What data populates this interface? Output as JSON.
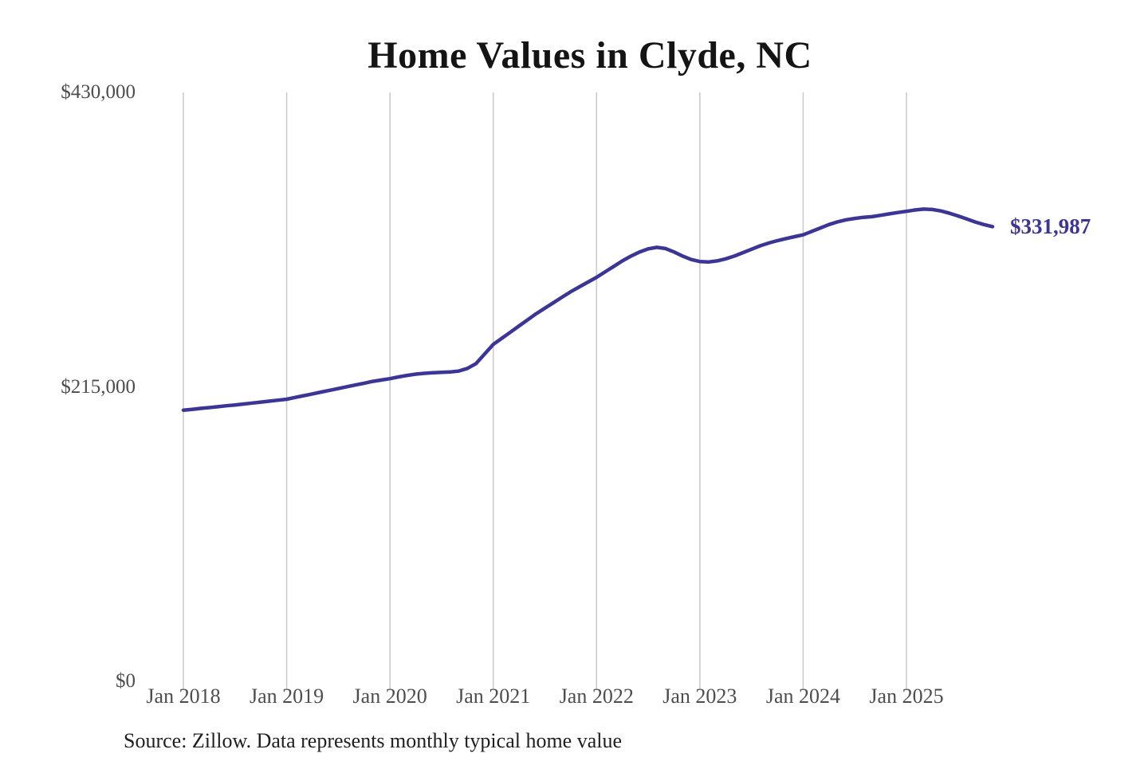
{
  "title": "Home Values in Clyde, NC",
  "source": "Source: Zillow. Data represents monthly typical home value",
  "colors": {
    "line": "#3b3696",
    "grid": "#c9c9c9",
    "axis_text": "#4d4d4d",
    "title_text": "#141414",
    "source_text": "#1f1f1f",
    "end_label": "#3b3696",
    "background": "#ffffff"
  },
  "chart_data": {
    "type": "line",
    "title": "Home Values in Clyde, NC",
    "xlabel": "",
    "ylabel": "",
    "ylim": [
      0,
      430000
    ],
    "y_tick_labels": [
      "$430,000",
      "$215,000",
      "$0"
    ],
    "y_tick_values": [
      430000,
      215000,
      0
    ],
    "x_tick_labels": [
      "Jan 2018",
      "Jan 2019",
      "Jan 2020",
      "Jan 2021",
      "Jan 2022",
      "Jan 2023",
      "Jan 2024",
      "Jan 2025"
    ],
    "grid": "vertical-only",
    "legend": "none",
    "end_label": "$331,987",
    "end_value": 331987,
    "series": [
      {
        "name": "Typical home value",
        "unit": "USD",
        "x_start": "2018-01",
        "x_interval": "month",
        "values": [
          198000,
          198600,
          199300,
          199900,
          200500,
          201200,
          201800,
          202500,
          203200,
          203900,
          204600,
          205300,
          206000,
          207300,
          208600,
          209900,
          211200,
          212500,
          213800,
          215100,
          216400,
          217700,
          219000,
          220000,
          221000,
          222300,
          223400,
          224300,
          224900,
          225300,
          225600,
          225900,
          226600,
          228500,
          232000,
          239000,
          246000,
          250500,
          255000,
          259500,
          264000,
          268500,
          272500,
          276500,
          280500,
          284500,
          288000,
          291500,
          295000,
          299000,
          303000,
          307000,
          310500,
          313500,
          315800,
          316900,
          316000,
          313500,
          310500,
          308000,
          306500,
          306200,
          307000,
          308500,
          310500,
          313000,
          315500,
          318000,
          320000,
          321800,
          323300,
          324700,
          326000,
          328500,
          331000,
          333500,
          335500,
          337000,
          338000,
          338800,
          339300,
          340300,
          341300,
          342300,
          343200,
          344200,
          344800,
          344500,
          343500,
          341800,
          339800,
          337600,
          335400,
          333500,
          331987
        ]
      }
    ]
  }
}
